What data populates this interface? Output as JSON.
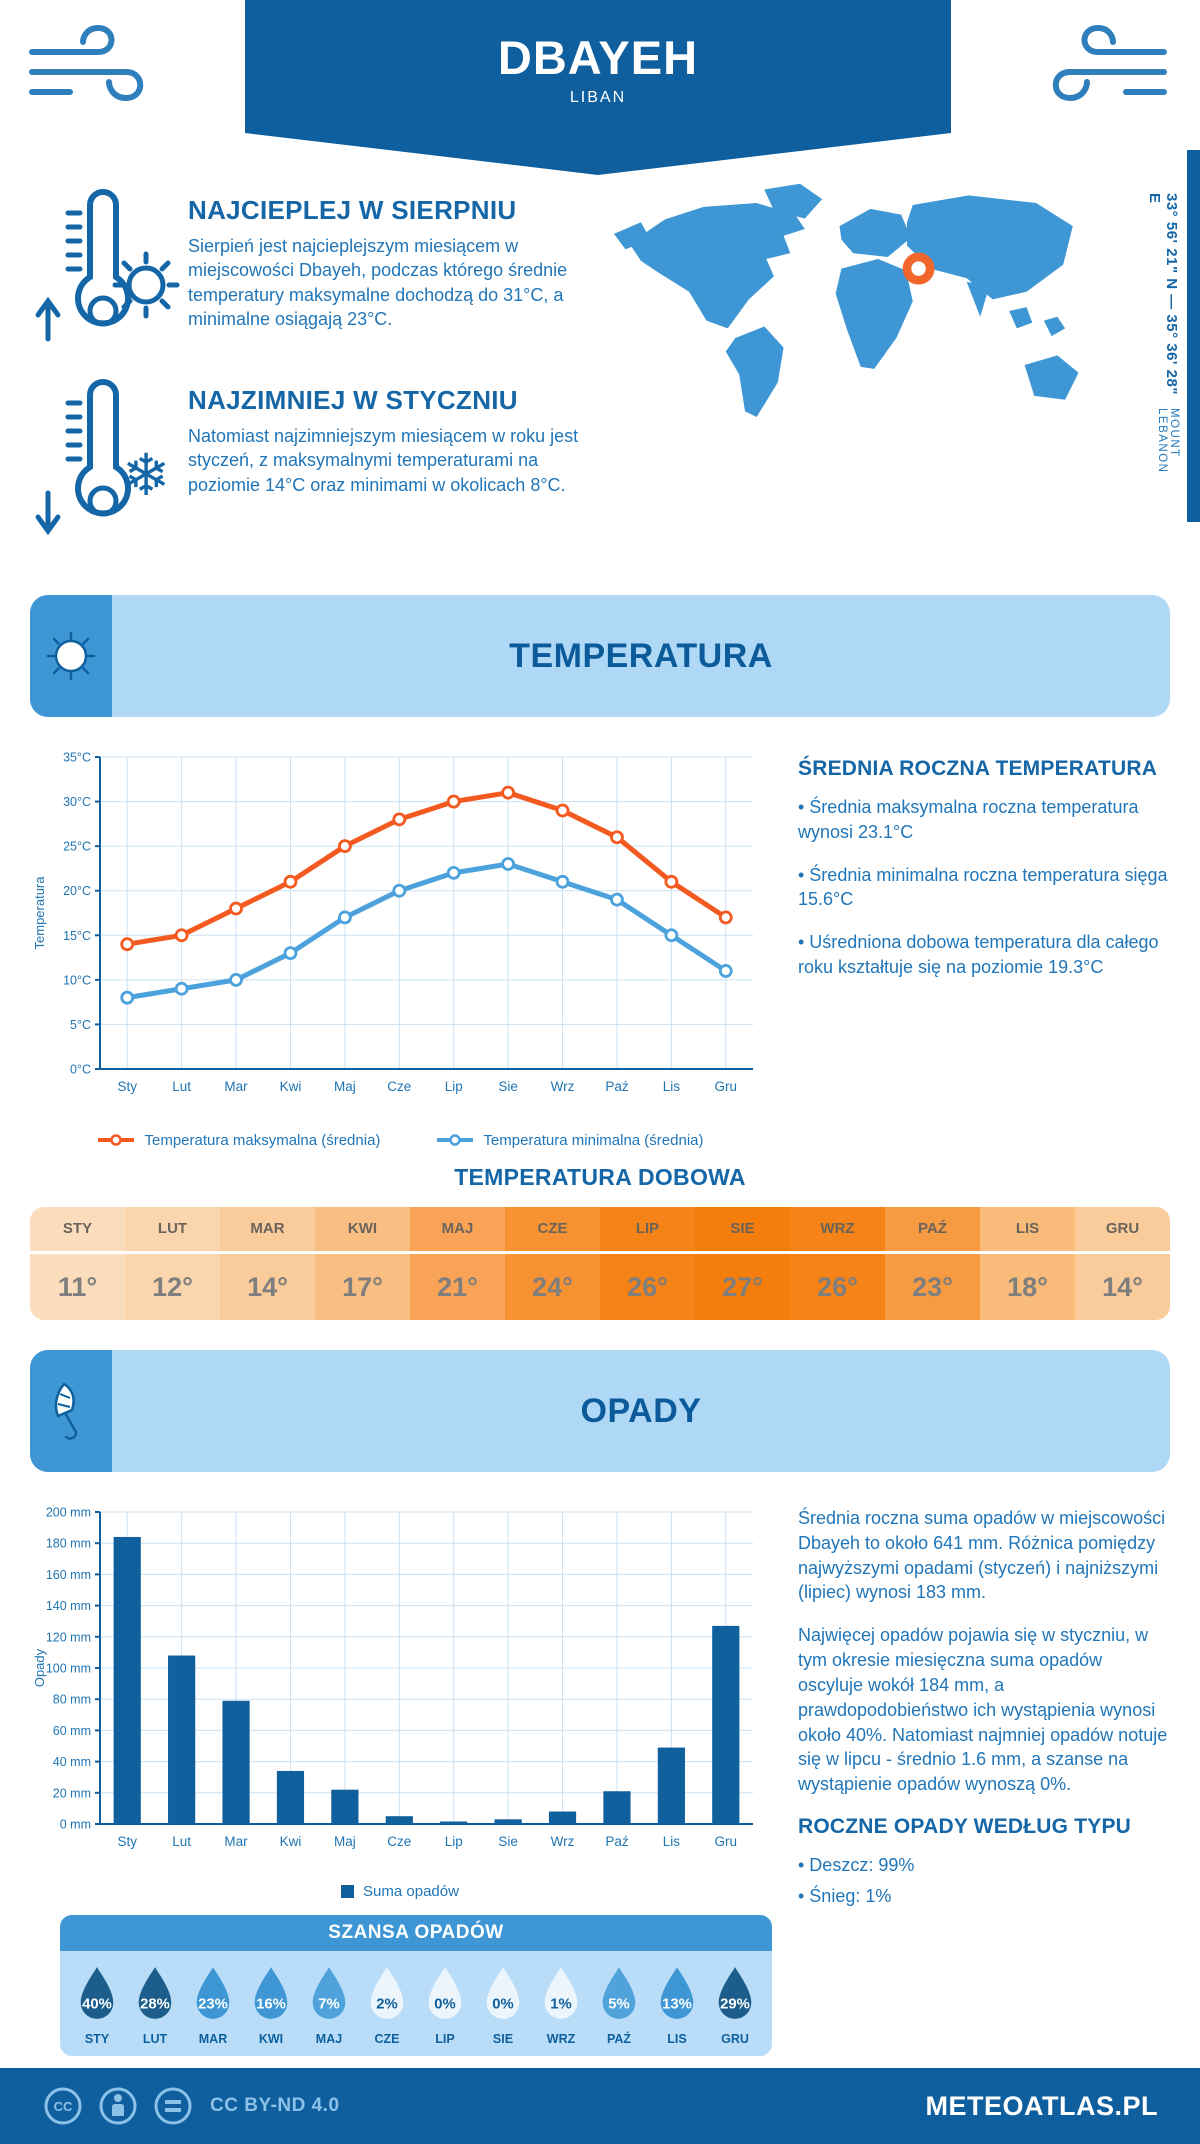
{
  "header": {
    "title": "DBAYEH",
    "subtitle": "LIBAN"
  },
  "coords": {
    "line": "33° 56' 21\" N — 35° 36' 28\" E",
    "region": "MOUNT LEBANON"
  },
  "warmest": {
    "title": "NAJCIEPLEJ W SIERPNIU",
    "text": "Sierpień jest najcieplejszym miesiącem w miejscowości Dbayeh, podczas którego średnie temperatury maksymalne dochodzą do 31°C, a minimalne osiągają 23°C."
  },
  "coldest": {
    "title": "NAJZIMNIEJ W STYCZNIU",
    "text": "Natomiast najzimniejszym miesiącem w roku jest styczeń, z maksymalnymi temperaturami na poziomie 14°C oraz minimami w okolicach 8°C."
  },
  "temperature_section": {
    "title": "TEMPERATURA"
  },
  "annual": {
    "heading": "ŚREDNIA ROCZNA TEMPERATURA",
    "bullets": [
      "• Średnia maksymalna roczna temperatura wynosi 23.1°C",
      "• Średnia minimalna roczna temperatura sięga 15.6°C",
      "• Uśredniona dobowa temperatura dla całego roku kształtuje się na poziomie 19.3°C"
    ]
  },
  "dobowa": {
    "heading": "TEMPERATURA DOBOWA",
    "months": [
      "STY",
      "LUT",
      "MAR",
      "KWI",
      "MAJ",
      "CZE",
      "LIP",
      "SIE",
      "WRZ",
      "PAŹ",
      "LIS",
      "GRU"
    ],
    "values": [
      "11°",
      "12°",
      "14°",
      "17°",
      "21°",
      "24°",
      "26°",
      "27°",
      "26°",
      "23°",
      "18°",
      "14°"
    ],
    "colors": [
      "#FBDCBC",
      "#FBD5AE",
      "#FACC9B",
      "#F9BE81",
      "#F8A355",
      "#F79233",
      "#F68318",
      "#F57D0C",
      "#F68318",
      "#F79B42",
      "#F9BB7A",
      "#FACC9B"
    ]
  },
  "opady_section": {
    "title": "OPADY"
  },
  "opady_text": {
    "p1": "Średnia roczna suma opadów w miejscowości Dbayeh to około 641 mm. Różnica pomiędzy najwyższymi opadami (styczeń) i najniższymi (lipiec) wynosi 183 mm.",
    "p2": "Najwięcej opadów pojawia się w styczniu, w tym okresie miesięczna suma opadów oscyluje wokół 184 mm, a prawdopodobieństwo ich wystąpienia wynosi około 40%. Natomiast najmniej opadów notuje się w lipcu - średnio 1.6 mm, a szanse na wystąpienie opadów wynoszą 0%.",
    "heading": "ROCZNE OPADY WEDŁUG TYPU",
    "bullets": [
      "• Deszcz: 99%",
      "• Śnieg: 1%"
    ]
  },
  "szansa": {
    "title": "SZANSA OPADÓW",
    "items": [
      {
        "month": "STY",
        "value": "40%",
        "fill": "#1C5D8C",
        "text": "#FFFFFF"
      },
      {
        "month": "LUT",
        "value": "28%",
        "fill": "#1C5D8C",
        "text": "#FFFFFF"
      },
      {
        "month": "MAR",
        "value": "23%",
        "fill": "#3E97D4",
        "text": "#FFFFFF"
      },
      {
        "month": "KWI",
        "value": "16%",
        "fill": "#3E97D4",
        "text": "#FFFFFF"
      },
      {
        "month": "MAJ",
        "value": "7%",
        "fill": "#4FA3DA",
        "text": "#FFFFFF"
      },
      {
        "month": "CZE",
        "value": "2%",
        "fill": "#EDF5FC",
        "text": "#0E5F9D"
      },
      {
        "month": "LIP",
        "value": "0%",
        "fill": "#EDF5FC",
        "text": "#0E5F9D"
      },
      {
        "month": "SIE",
        "value": "0%",
        "fill": "#EDF5FC",
        "text": "#0E5F9D"
      },
      {
        "month": "WRZ",
        "value": "1%",
        "fill": "#EDF5FC",
        "text": "#0E5F9D"
      },
      {
        "month": "PAŹ",
        "value": "5%",
        "fill": "#4FA3DA",
        "text": "#FFFFFF"
      },
      {
        "month": "LIS",
        "value": "13%",
        "fill": "#3E97D4",
        "text": "#FFFFFF"
      },
      {
        "month": "GRU",
        "value": "29%",
        "fill": "#1C5D8C",
        "text": "#FFFFFF"
      }
    ]
  },
  "footer": {
    "license": "CC BY-ND 4.0",
    "site": "METEOATLAS.PL"
  },
  "chart_data": [
    {
      "type": "line",
      "categories": [
        "Sty",
        "Lut",
        "Mar",
        "Kwi",
        "Maj",
        "Cze",
        "Lip",
        "Sie",
        "Wrz",
        "Paź",
        "Lis",
        "Gru"
      ],
      "series": [
        {
          "name": "Temperatura maksymalna (średnia)",
          "color": "#F4591F",
          "values": [
            14,
            15,
            18,
            21,
            25,
            28,
            30,
            31,
            29,
            26,
            21,
            17
          ]
        },
        {
          "name": "Temperatura minimalna (średnia)",
          "color": "#4BA2DC",
          "values": [
            8,
            9,
            10,
            13,
            17,
            20,
            22,
            23,
            21,
            19,
            15,
            11
          ]
        }
      ],
      "ylabel": "Temperatura",
      "ytick_suffix": "°C",
      "ylim": [
        0,
        35
      ],
      "ystep": 5,
      "grid": true,
      "legend_position": "bottom"
    },
    {
      "type": "bar",
      "categories": [
        "Sty",
        "Lut",
        "Mar",
        "Kwi",
        "Maj",
        "Cze",
        "Lip",
        "Sie",
        "Wrz",
        "Paź",
        "Lis",
        "Gru"
      ],
      "values": [
        184,
        108,
        79,
        34,
        22,
        5,
        1.6,
        3,
        8,
        21,
        49,
        127
      ],
      "color": "#11609E",
      "legend": "Suma opadów",
      "ylabel": "Opady",
      "ytick_suffix": " mm",
      "ylim": [
        0,
        200
      ],
      "ystep": 20,
      "grid": true,
      "legend_position": "bottom"
    }
  ]
}
